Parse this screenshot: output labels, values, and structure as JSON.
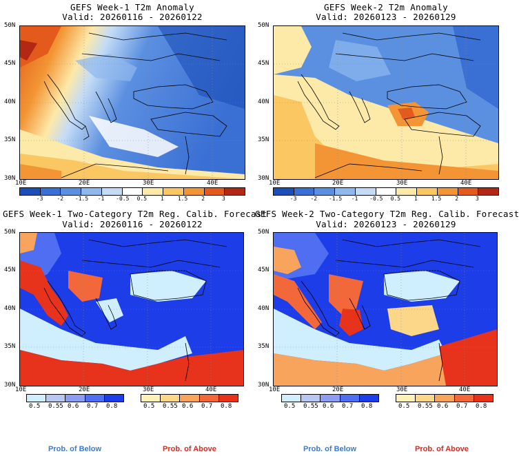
{
  "panels": {
    "top_left": {
      "title": "GEFS Week-1 T2m Anomaly",
      "valid": "Valid: 20260116 - 20260122"
    },
    "top_right": {
      "title": "GEFS Week-2 T2m Anomaly",
      "valid": "Valid: 20260123 - 20260129"
    },
    "bottom_left": {
      "title": "GEFS Week-1 Two-Category T2m Reg. Calib. Forecast",
      "valid": "Valid: 20260116 - 20260122"
    },
    "bottom_right": {
      "title": "GEFS Week-2 Two-Category T2m Reg. Calib. Forecast",
      "valid": "Valid: 20260123 - 20260129"
    }
  },
  "axes": {
    "lat_labels": [
      "50N",
      "45N",
      "40N",
      "35N",
      "30N"
    ],
    "lon_labels": [
      "10E",
      "20E",
      "30E",
      "40E"
    ]
  },
  "anomaly_colorbar": {
    "labels": [
      "-3",
      "-2",
      "-1.5",
      "-1",
      "-0.5",
      "0.5",
      "1",
      "1.5",
      "2",
      "3"
    ],
    "colors": [
      "#1a4fb8",
      "#3a6fd4",
      "#5b8fe0",
      "#8fb8ee",
      "#c4dcf6",
      "#ffffff",
      "#fde9a8",
      "#fbc763",
      "#f39534",
      "#e35a1c",
      "#b32814"
    ]
  },
  "prob_below": {
    "labels": [
      "0.5",
      "0.55",
      "0.6",
      "0.7",
      "0.8"
    ],
    "colors": [
      "#cfefff",
      "#b8c7f2",
      "#8c9ef0",
      "#4f6ef2",
      "#1c3de8"
    ],
    "legend": "Prob. of Below",
    "legend_color": "#3a7ad8"
  },
  "prob_above": {
    "labels": [
      "0.5",
      "0.55",
      "0.6",
      "0.7",
      "0.8"
    ],
    "colors": [
      "#fff2b8",
      "#fcd78a",
      "#f9a45c",
      "#f3683a",
      "#e8331c"
    ],
    "legend": "Prob. of Above",
    "legend_color": "#e0261c"
  }
}
